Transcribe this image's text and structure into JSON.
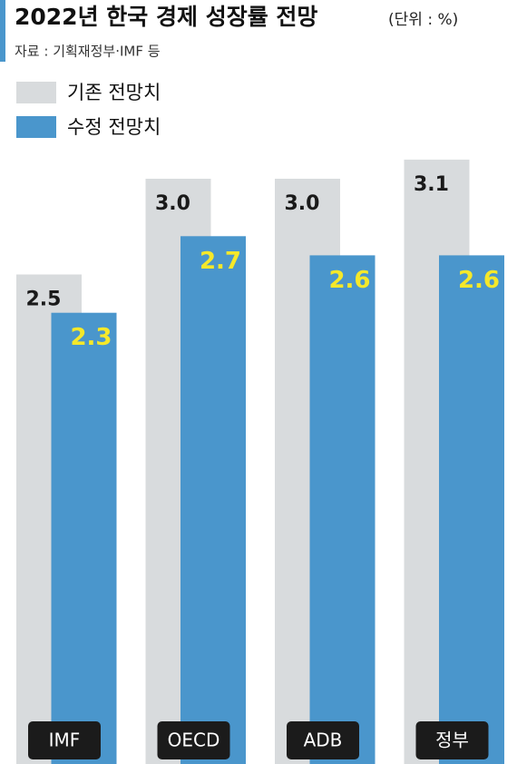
{
  "chart_data": {
    "type": "bar",
    "title": "2022년 한국 경제 성장률 전망",
    "unit": "(단위 : %)",
    "source": "자료 : 기획재정부·IMF 등",
    "legend": "top-left",
    "categories": [
      "IMF",
      "OECD",
      "ADB",
      "정부"
    ],
    "series": [
      {
        "name": "기존 전망치",
        "color": "#d8dbdd",
        "values": [
          2.5,
          3,
          3,
          3.1
        ],
        "value_labels": [
          "2.5",
          "3.0",
          "3.0",
          "3.1"
        ]
      },
      {
        "name": "수정 전망치",
        "color": "#4a96cc",
        "values": [
          2.3,
          2.7,
          2.6,
          2.6
        ]
      }
    ]
  }
}
